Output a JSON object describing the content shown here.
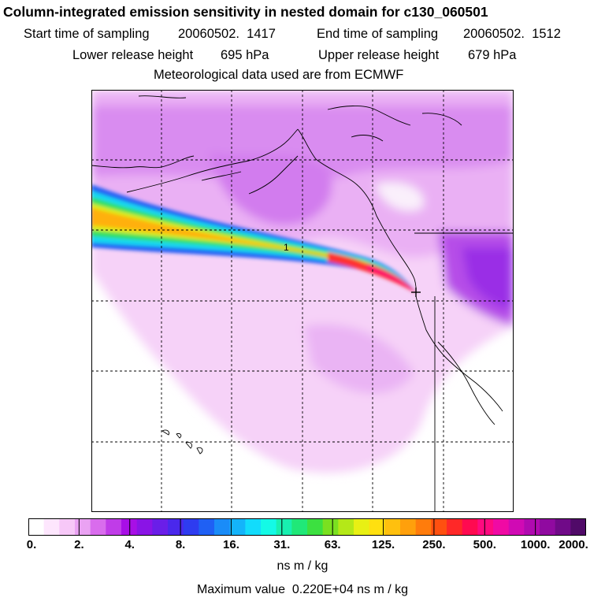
{
  "title": "Column-integrated emission sensitivity in nested domain for c130_060501",
  "sampling": {
    "start_label": "Start time of sampling",
    "start_value": "20060502.  1417",
    "end_label": "End time of sampling",
    "end_value": "20060502.  1512"
  },
  "release": {
    "lower_label": "Lower release height",
    "lower_value": "695 hPa",
    "upper_label": "Upper release height",
    "upper_value": "679 hPa"
  },
  "met_line": "Meteorological data used are from ECMWF",
  "map": {
    "contour_label": "1",
    "colors": {
      "land_outline": "#000000",
      "grid": "#000000"
    }
  },
  "colorbar": {
    "ticks": [
      "0.",
      "2.",
      "4.",
      "8.",
      "16.",
      "31.",
      "63.",
      "125.",
      "250.",
      "500.",
      "1000.",
      "2000."
    ],
    "colors": [
      "#ffffff",
      "#fde6fd",
      "#f7c8f8",
      "#eaa2f3",
      "#d96ced",
      "#c03ce8",
      "#a80fe6",
      "#8a14e6",
      "#6a1ee8",
      "#4a28ec",
      "#2e3cf0",
      "#1f60f4",
      "#1a8cf8",
      "#14b4fa",
      "#12dcfc",
      "#14fae6",
      "#18f0b0",
      "#20e878",
      "#3ce040",
      "#7ae020",
      "#b4e818",
      "#e8f014",
      "#ffe010",
      "#ffc00e",
      "#ffa00c",
      "#ff7c0c",
      "#ff5010",
      "#ff2828",
      "#ff0a50",
      "#ff0a80",
      "#f00aa4",
      "#d00ab4",
      "#b00ab0",
      "#900aa0",
      "#700a88",
      "#500a68"
    ],
    "unit": "ns m / kg"
  },
  "max_line": "Maximum value  0.220E+04 ns m / kg"
}
